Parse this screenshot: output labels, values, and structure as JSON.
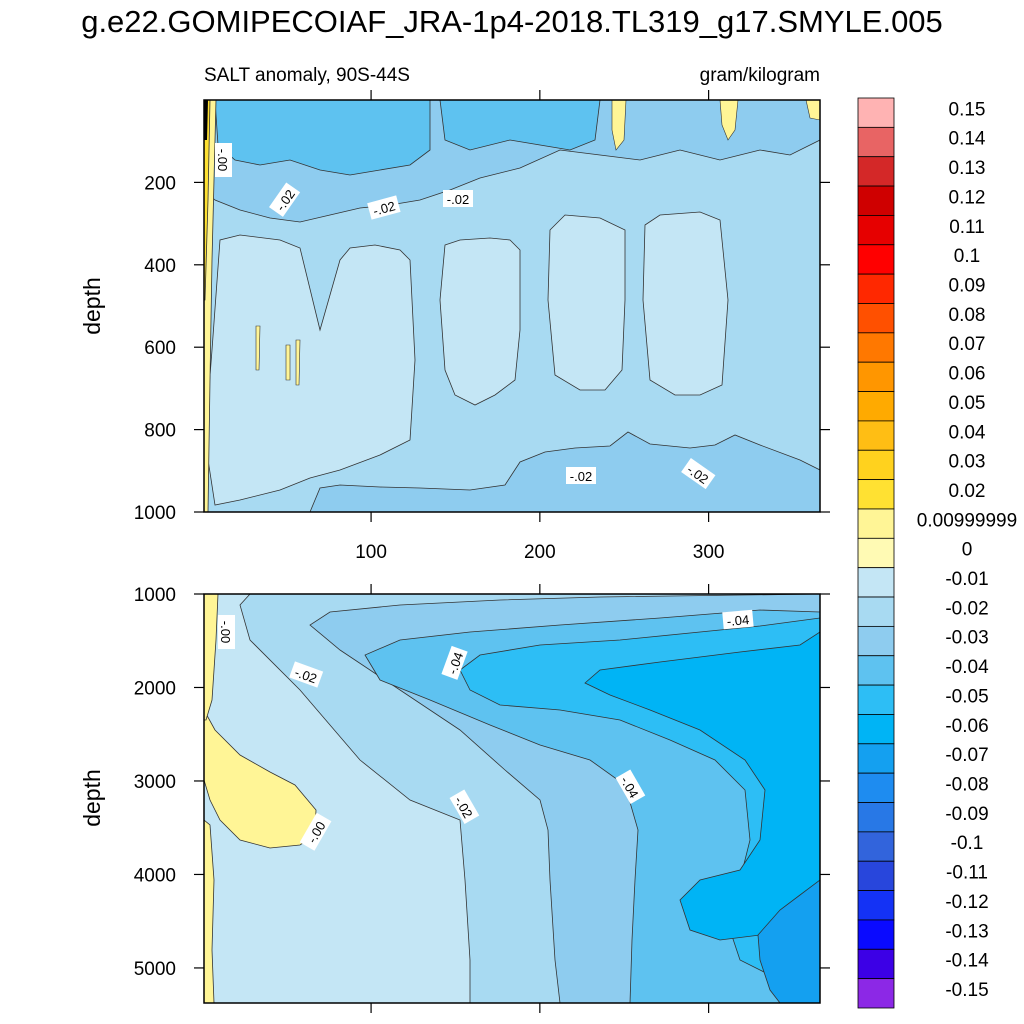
{
  "title": "g.e22.GOMIPECOIAF_JRA-1p4-2018.TL319_g17.SMYLE.005",
  "chart_data": {
    "type": "contour",
    "variable_label": "SALT anomaly, 90S-44S",
    "units": "gram/kilogram",
    "x_ticks": [
      100,
      200,
      300
    ],
    "x_range": [
      1,
      366
    ],
    "colorbar": {
      "labels": [
        "0.15",
        "0.14",
        "0.13",
        "0.12",
        "0.11",
        "0.1",
        "0.09",
        "0.08",
        "0.07",
        "0.06",
        "0.05",
        "0.04",
        "0.03",
        "0.02",
        "0.00999999",
        "0",
        "-0.01",
        "-0.02",
        "-0.03",
        "-0.04",
        "-0.05",
        "-0.06",
        "-0.07",
        "-0.08",
        "-0.09",
        "-0.1",
        "-0.11",
        "-0.12",
        "-0.13",
        "-0.14",
        "-0.15"
      ],
      "colors": [
        "#FFB3B3",
        "#E86464",
        "#D42828",
        "#CF0000",
        "#E60000",
        "#FF0000",
        "#FF2800",
        "#FF5000",
        "#FF7800",
        "#FF9600",
        "#FFAA00",
        "#FFBE14",
        "#FFD21E",
        "#FFE132",
        "#FFF596",
        "#FFFAB4",
        "#C4E6F5",
        "#A8DAF2",
        "#8ECCEF",
        "#5EC2F0",
        "#2DBEF5",
        "#00B4F5",
        "#14A0F0",
        "#1E8CF0",
        "#2878E6",
        "#3264DC",
        "#2846DC",
        "#1432F5",
        "#0A0AFF",
        "#3C00E6",
        "#8C28E6"
      ]
    },
    "panels": [
      {
        "ylabel": "depth",
        "y_range": [
          0,
          1000
        ],
        "y_ticks": [
          200,
          400,
          600,
          800,
          1000
        ],
        "contour_labels": [
          "-.00",
          "-.02",
          "-.02",
          "-.02",
          "-.02",
          "-.02"
        ]
      },
      {
        "ylabel": "depth",
        "y_range": [
          1000,
          5375
        ],
        "y_ticks": [
          1000,
          2000,
          3000,
          4000,
          5000
        ],
        "contour_labels": [
          "-.00",
          "-.02",
          "-.04",
          "-.04",
          "-.04",
          "-.02",
          "-.00"
        ]
      }
    ]
  }
}
